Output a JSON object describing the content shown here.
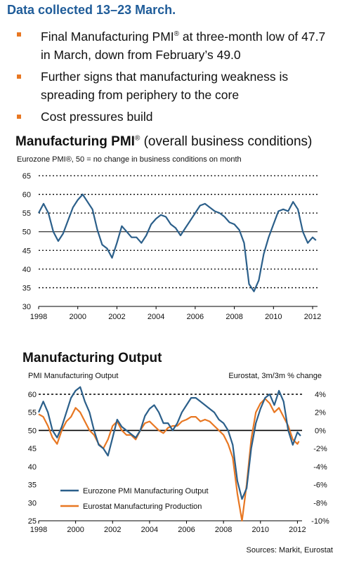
{
  "header": "Data collected 13–23 March.",
  "bullets": [
    {
      "text_a": "Final Manufacturing PMI",
      "sup": "®",
      "text_b": " at three-month low of 47.7 in March, down from February’s 49.0"
    },
    {
      "text": "Further signs that manufacturing weakness is spreading from periphery to the core"
    },
    {
      "text": "Cost pressures build"
    }
  ],
  "colors": {
    "header": "#1f5c99",
    "bullet": "#e87722",
    "pmi": "#2b5f8a",
    "eurostat": "#e87722"
  },
  "chart_data": [
    {
      "type": "line",
      "title_bold": "Manufacturing PMI",
      "title_sup": "®",
      "title_rest": " (overall business conditions)",
      "subtitle": "Eurozone PMI®, 50 = no change in business conditions on month",
      "xlim": [
        1998,
        2012.25
      ],
      "ylim": [
        30,
        65
      ],
      "x_ticks": [
        1998,
        2000,
        2002,
        2004,
        2006,
        2008,
        2010,
        2012
      ],
      "y_ticks": [
        30,
        35,
        40,
        45,
        50,
        55,
        60,
        65
      ],
      "grid": "dotted horizontal",
      "series": [
        {
          "x": [
            1998,
            1998.25,
            1998.5,
            1998.75,
            1999,
            1999.25,
            1999.5,
            1999.75,
            2000,
            2000.25,
            2000.5,
            2000.75,
            2001,
            2001.25,
            2001.5,
            2001.75,
            2002,
            2002.25,
            2002.5,
            2002.75,
            2003,
            2003.25,
            2003.5,
            2003.75,
            2004,
            2004.25,
            2004.5,
            2004.75,
            2005,
            2005.25,
            2005.5,
            2005.75,
            2006,
            2006.25,
            2006.5,
            2006.75,
            2007,
            2007.25,
            2007.5,
            2007.75,
            2008,
            2008.25,
            2008.5,
            2008.75,
            2009,
            2009.25,
            2009.5,
            2009.75,
            2010,
            2010.25,
            2010.5,
            2010.75,
            2011,
            2011.25,
            2011.5,
            2011.75,
            2012,
            2012.17
          ],
          "y": [
            55,
            57.5,
            55,
            50,
            47.5,
            49.5,
            53,
            56.5,
            58.5,
            60,
            58,
            56,
            50.5,
            46.5,
            45.5,
            43,
            47,
            51.5,
            50,
            48.5,
            48.5,
            47,
            49,
            52,
            53.5,
            54.5,
            54,
            52,
            51,
            49,
            51,
            53,
            55,
            57,
            57.5,
            56.5,
            55.5,
            55,
            54,
            52.5,
            52,
            50.5,
            47,
            36,
            34,
            37,
            44,
            48.5,
            52,
            55.5,
            56,
            55.5,
            58,
            56,
            50,
            47,
            48.5,
            47.7
          ]
        }
      ]
    },
    {
      "type": "line",
      "title": "Manufacturing Output",
      "subtitle_left": "PMI Manufacturing Output",
      "subtitle_right": "Eurostat, 3m/3m % change",
      "xlim": [
        1998,
        2012.25
      ],
      "ylim_left": [
        25,
        60
      ],
      "ylim_right": [
        -10,
        4
      ],
      "x_ticks": [
        1998,
        2000,
        2002,
        2004,
        2006,
        2008,
        2010,
        2012
      ],
      "y_ticks_left": [
        25,
        30,
        35,
        40,
        45,
        50,
        55,
        60
      ],
      "y_ticks_right": [
        "4%",
        "2%",
        "0%",
        "-2%",
        "-4%",
        "-6%",
        "-8%",
        "-10%"
      ],
      "legend": "bottom-left",
      "series": [
        {
          "name": "Eurozone PMI Manufacturing Output",
          "axis": "left",
          "x": [
            1998,
            1998.25,
            1998.5,
            1998.75,
            1999,
            1999.25,
            1999.5,
            1999.75,
            2000,
            2000.25,
            2000.5,
            2000.75,
            2001,
            2001.25,
            2001.5,
            2001.75,
            2002,
            2002.25,
            2002.5,
            2002.75,
            2003,
            2003.25,
            2003.5,
            2003.75,
            2004,
            2004.25,
            2004.5,
            2004.75,
            2005,
            2005.25,
            2005.5,
            2005.75,
            2006,
            2006.25,
            2006.5,
            2006.75,
            2007,
            2007.25,
            2007.5,
            2007.75,
            2008,
            2008.25,
            2008.5,
            2008.75,
            2009,
            2009.25,
            2009.5,
            2009.75,
            2010,
            2010.25,
            2010.5,
            2010.75,
            2011,
            2011.25,
            2011.5,
            2011.75,
            2012,
            2012.17
          ],
          "y": [
            55,
            58,
            55,
            50,
            48,
            51,
            55,
            59,
            61,
            62,
            58,
            55,
            50,
            46,
            45,
            43,
            48,
            53,
            51,
            50,
            49,
            48,
            50,
            54,
            56,
            57,
            55,
            52,
            52,
            50,
            52,
            55,
            57,
            59,
            59,
            58,
            57,
            56,
            55,
            53,
            52,
            50,
            46,
            36,
            31,
            34,
            45,
            52,
            56,
            59,
            60,
            57,
            61,
            58,
            50,
            46,
            49.5,
            48.5
          ]
        },
        {
          "name": "Eurostat Manufacturing Production",
          "axis": "right",
          "x": [
            1998,
            1998.25,
            1998.5,
            1998.75,
            1999,
            1999.25,
            1999.5,
            1999.75,
            2000,
            2000.25,
            2000.5,
            2000.75,
            2001,
            2001.25,
            2001.5,
            2001.75,
            2002,
            2002.25,
            2002.5,
            2002.75,
            2003,
            2003.25,
            2003.5,
            2003.75,
            2004,
            2004.25,
            2004.5,
            2004.75,
            2005,
            2005.25,
            2005.5,
            2005.75,
            2006,
            2006.25,
            2006.5,
            2006.75,
            2007,
            2007.25,
            2007.5,
            2007.75,
            2008,
            2008.25,
            2008.5,
            2008.75,
            2009,
            2009.25,
            2009.5,
            2009.75,
            2010,
            2010.25,
            2010.5,
            2010.75,
            2011,
            2011.25,
            2011.5,
            2011.75,
            2012,
            2012.08
          ],
          "y": [
            1.8,
            1.5,
            0.5,
            -0.8,
            -1.5,
            0,
            1,
            1.5,
            2.5,
            2,
            1,
            0,
            -0.5,
            -1.5,
            -2,
            -1,
            0.5,
            1,
            0,
            -0.5,
            -0.5,
            -1,
            0,
            0.8,
            1,
            0.5,
            0,
            -0.3,
            0.3,
            0.5,
            0.5,
            1,
            1.2,
            1.5,
            1.5,
            1,
            1.2,
            1,
            0.5,
            0,
            -0.5,
            -1.5,
            -3,
            -7,
            -10,
            -6,
            -1,
            2,
            3,
            3.5,
            3,
            2,
            2.5,
            1.5,
            0.5,
            -1,
            -1.5,
            -1.2
          ]
        }
      ]
    }
  ],
  "sources": "Sources: Markit, Eurostat"
}
